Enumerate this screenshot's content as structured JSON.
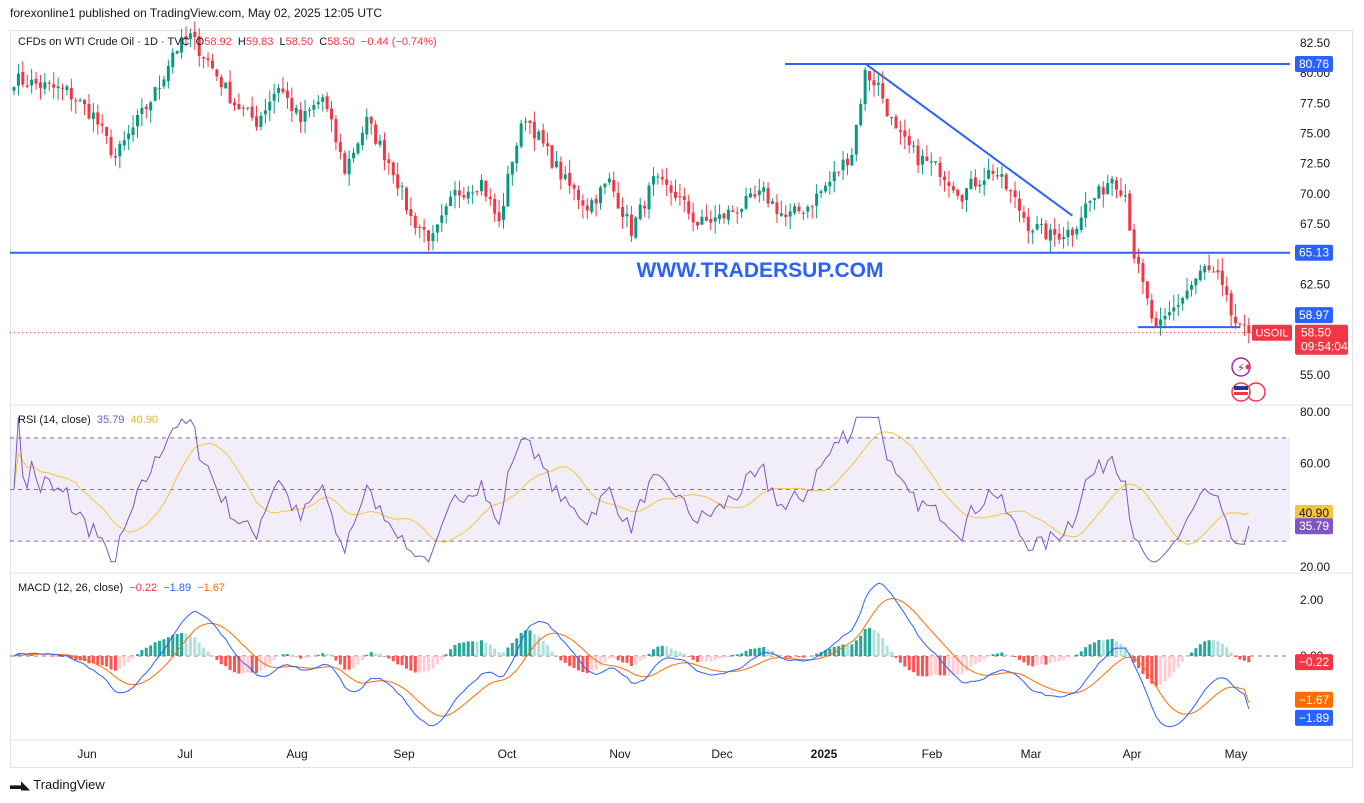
{
  "header": {
    "published": "forexonline1 published on TradingView.com, May 02, 2025 12:05 UTC"
  },
  "footer": {
    "brand": "TradingView"
  },
  "watermark": "WWW.TRADERSUP.COM",
  "colors": {
    "up": "#089981",
    "down": "#f23645",
    "line": "#2962ff",
    "rsi": "#7e57c2",
    "rsi_ma": "#f5c542",
    "signal": "#ff6d00"
  },
  "legend": {
    "symbol": "CFDs on WTI Crude Oil · 1D · TVC",
    "o_label": "O",
    "o": "58.92",
    "h_label": "H",
    "h": "59.83",
    "l_label": "L",
    "l": "58.50",
    "c_label": "C",
    "c": "58.50",
    "chg": "−0.44 (−0.74%)"
  },
  "rsi_legend": {
    "name": "RSI (14, close)",
    "v1": "35.79",
    "v2": "40.90"
  },
  "macd_legend": {
    "name": "MACD (12, 26, close)",
    "v1": "−0.22",
    "v2": "−1.89",
    "v3": "−1.67"
  },
  "chart_data": [
    {
      "type": "candlestick",
      "title": "CFDs on WTI Crude Oil · 1D · TVC",
      "x_labels": [
        "Jun",
        "Jul",
        "Aug",
        "Sep",
        "Oct",
        "Nov",
        "Dec",
        "2025",
        "Feb",
        "Mar",
        "Apr",
        "May"
      ],
      "y_ticks": [
        "82.50",
        "80.00",
        "77.50",
        "75.00",
        "72.50",
        "70.00",
        "67.50",
        "65.00",
        "62.50",
        "60.00",
        "57.50",
        "55.00"
      ],
      "ylim": [
        54,
        83.5
      ],
      "close_anchors": [
        [
          0,
          79.5
        ],
        [
          12,
          78.5
        ],
        [
          18,
          76.5
        ],
        [
          23,
          73
        ],
        [
          28,
          76
        ],
        [
          33,
          79
        ],
        [
          36,
          81.8
        ],
        [
          40,
          83
        ],
        [
          44,
          81
        ],
        [
          50,
          77.5
        ],
        [
          55,
          76
        ],
        [
          60,
          79
        ],
        [
          65,
          76
        ],
        [
          70,
          78
        ],
        [
          75,
          72
        ],
        [
          80,
          76
        ],
        [
          86,
          72
        ],
        [
          90,
          68
        ],
        [
          95,
          66.2
        ],
        [
          100,
          70
        ],
        [
          106,
          71
        ],
        [
          110,
          67.5
        ],
        [
          113,
          73
        ],
        [
          116,
          76.5
        ],
        [
          120,
          74
        ],
        [
          125,
          71
        ],
        [
          130,
          69
        ],
        [
          135,
          71
        ],
        [
          140,
          67
        ],
        [
          145,
          71
        ],
        [
          150,
          70
        ],
        [
          155,
          67.5
        ],
        [
          160,
          68
        ],
        [
          165,
          69
        ],
        [
          170,
          70
        ],
        [
          175,
          68
        ],
        [
          180,
          69
        ],
        [
          185,
          71
        ],
        [
          190,
          73.5
        ],
        [
          193,
          80
        ],
        [
          196,
          79
        ],
        [
          200,
          75
        ],
        [
          205,
          73
        ],
        [
          210,
          72
        ],
        [
          215,
          70
        ],
        [
          218,
          71
        ],
        [
          222,
          72
        ],
        [
          226,
          70
        ],
        [
          230,
          67.5
        ],
        [
          235,
          66.5
        ],
        [
          240,
          67
        ],
        [
          243,
          69
        ],
        [
          246,
          70
        ],
        [
          249,
          71.5
        ],
        [
          252,
          70
        ],
        [
          254,
          65
        ],
        [
          257,
          61
        ],
        [
          259,
          58.5
        ],
        [
          263,
          60.5
        ],
        [
          266,
          62
        ],
        [
          270,
          63.8
        ],
        [
          273,
          63
        ],
        [
          276,
          60
        ],
        [
          278,
          58.6
        ],
        [
          280,
          58.5
        ]
      ],
      "last_price": "58.50",
      "countdown": "09:54:04",
      "symbol_tag": "USOIL",
      "price_labels": [
        "80.76",
        "65.13",
        "58.97"
      ],
      "levels": [
        80.76,
        65.13,
        58.97
      ],
      "trendline": [
        [
          193,
          80.8
        ],
        [
          240,
          68.2
        ]
      ]
    },
    {
      "type": "line",
      "name": "RSI (14, close)",
      "y_ticks": [
        "80.00",
        "60.00",
        "20.00"
      ],
      "ylim": [
        20,
        80
      ],
      "bands": [
        30,
        50,
        70
      ],
      "rsi": 35.79,
      "rsi_ma": 40.9,
      "value_labels": [
        "40.90",
        "35.79"
      ]
    },
    {
      "type": "line",
      "name": "MACD (12, 26, close)",
      "y_ticks": [
        "2.00",
        "0.00"
      ],
      "ylim": [
        -3.1,
        2.4
      ],
      "hist": -0.22,
      "macd": -1.89,
      "signal": -1.67,
      "value_labels": [
        "−0.22",
        "−1.67",
        "−1.89"
      ]
    }
  ]
}
